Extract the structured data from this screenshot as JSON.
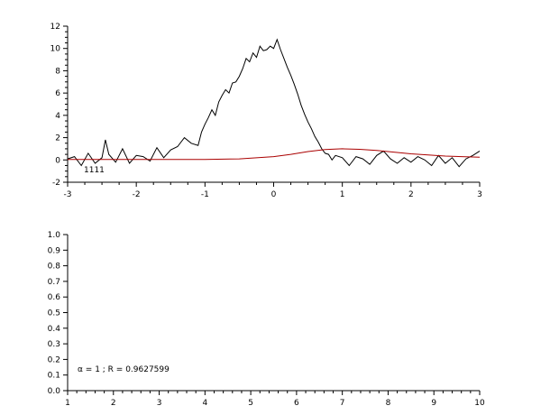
{
  "chart_data": [
    {
      "type": "line",
      "xlim": [
        -3,
        3
      ],
      "ylim": [
        -2,
        12
      ],
      "xticks": [
        -3,
        -2,
        -1,
        0,
        1,
        2,
        3
      ],
      "yticks": [
        -2,
        0,
        2,
        4,
        6,
        8,
        10,
        12
      ],
      "grid": false,
      "annotation": "1111",
      "series": [
        {
          "color": "#000000",
          "x": [
            -3.0,
            -2.9,
            -2.8,
            -2.7,
            -2.6,
            -2.5,
            -2.45,
            -2.4,
            -2.3,
            -2.2,
            -2.1,
            -2.0,
            -1.9,
            -1.8,
            -1.7,
            -1.6,
            -1.5,
            -1.4,
            -1.3,
            -1.2,
            -1.1,
            -1.05,
            -1.0,
            -0.95,
            -0.9,
            -0.85,
            -0.8,
            -0.75,
            -0.7,
            -0.65,
            -0.6,
            -0.55,
            -0.5,
            -0.45,
            -0.4,
            -0.35,
            -0.3,
            -0.25,
            -0.2,
            -0.15,
            -0.1,
            -0.05,
            0.0,
            0.05,
            0.1,
            0.15,
            0.2,
            0.25,
            0.3,
            0.35,
            0.4,
            0.45,
            0.5,
            0.55,
            0.6,
            0.65,
            0.7,
            0.75,
            0.8,
            0.85,
            0.9,
            1.0,
            1.1,
            1.2,
            1.3,
            1.4,
            1.5,
            1.6,
            1.7,
            1.8,
            1.9,
            2.0,
            2.1,
            2.2,
            2.3,
            2.4,
            2.5,
            2.6,
            2.7,
            2.8,
            2.9,
            3.0
          ],
          "y": [
            0.1,
            0.3,
            -0.5,
            0.6,
            -0.3,
            0.2,
            1.8,
            0.5,
            -0.2,
            1.0,
            -0.3,
            0.4,
            0.3,
            -0.1,
            1.1,
            0.2,
            0.9,
            1.2,
            2.0,
            1.5,
            1.3,
            2.5,
            3.2,
            3.8,
            4.5,
            4.0,
            5.2,
            5.8,
            6.3,
            6.0,
            6.9,
            7.0,
            7.5,
            8.2,
            9.1,
            8.8,
            9.6,
            9.2,
            10.2,
            9.8,
            9.9,
            10.2,
            10.0,
            10.8,
            9.9,
            9.1,
            8.3,
            7.6,
            6.8,
            5.9,
            4.9,
            4.1,
            3.4,
            2.8,
            2.1,
            1.6,
            1.0,
            0.6,
            0.5,
            0.0,
            0.4,
            0.2,
            -0.5,
            0.3,
            0.1,
            -0.4,
            0.4,
            0.8,
            0.1,
            -0.3,
            0.2,
            -0.2,
            0.3,
            0.0,
            -0.5,
            0.4,
            -0.3,
            0.2,
            -0.6,
            0.1,
            0.4,
            0.8
          ]
        },
        {
          "color": "#aa0000",
          "x": [
            -3.0,
            -2.5,
            -2.0,
            -1.5,
            -1.0,
            -0.5,
            0.0,
            0.25,
            0.5,
            0.75,
            1.0,
            1.25,
            1.5,
            1.75,
            2.0,
            2.5,
            3.0
          ],
          "y": [
            0.05,
            0.05,
            0.05,
            0.05,
            0.05,
            0.1,
            0.3,
            0.5,
            0.75,
            0.93,
            1.0,
            0.95,
            0.85,
            0.7,
            0.55,
            0.35,
            0.25
          ]
        }
      ]
    },
    {
      "type": "line",
      "xlim": [
        1,
        10
      ],
      "ylim": [
        0.0,
        1.0
      ],
      "xticks": [
        1,
        2,
        3,
        4,
        5,
        6,
        7,
        8,
        9,
        10
      ],
      "yticks": [
        "0.0",
        "0.1",
        "0.2",
        "0.3",
        "0.4",
        "0.5",
        "0.6",
        "0.7",
        "0.8",
        "0.9",
        "1.0"
      ],
      "grid": false,
      "annotation": "α = 1 ; R = 0.9627599",
      "series": []
    }
  ]
}
